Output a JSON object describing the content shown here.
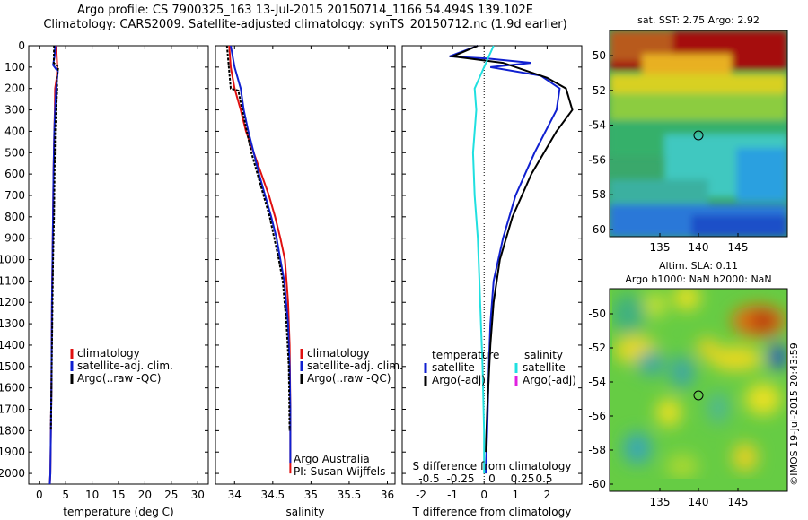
{
  "header": {
    "title_line1": "Argo profile: CS 7900325_163 13-Jul-2015 20150714_1166 54.494S 139.102E",
    "title_line2": "Climatology: CARS2009. Satellite-adjusted climatology: synTS_20150712.nc (1.9d earlier)"
  },
  "colors": {
    "climatology": "#e01010",
    "satellite_adj": "#1020d0",
    "argo": "#000000",
    "sal_satellite": "#20e0e0",
    "sal_argo_adj": "#e020e0"
  },
  "chart_data": [
    {
      "type": "line",
      "panel": "temperature",
      "xlabel": "temperature (deg C)",
      "ylabel": "",
      "xlim": [
        -2,
        32
      ],
      "ylim": [
        2050,
        0
      ],
      "xticks": [
        "0",
        "5",
        "10",
        "15",
        "20",
        "25",
        "30"
      ],
      "yticks": [
        "0",
        "100",
        "200",
        "300",
        "400",
        "500",
        "600",
        "700",
        "800",
        "900",
        "1000",
        "1100",
        "1200",
        "1300",
        "1400",
        "1500",
        "1600",
        "1700",
        "1800",
        "1900",
        "2000"
      ],
      "legend": [
        "climatology",
        "satellite-adj. clim.",
        "Argo(..raw -QC)"
      ],
      "series": [
        {
          "name": "climatology",
          "color": "#e01010",
          "x": [
            3.2,
            3.3,
            3.4,
            3.3,
            3.0,
            2.95,
            2.85,
            2.7,
            2.6,
            2.5,
            2.4,
            2.35,
            2.3,
            2.2,
            2.1,
            2.0
          ],
          "y": [
            0,
            50,
            100,
            150,
            200,
            300,
            400,
            600,
            800,
            1000,
            1200,
            1400,
            1600,
            1800,
            2000,
            2050
          ]
        },
        {
          "name": "satellite-adj. clim.",
          "color": "#1020d0",
          "x": [
            3.0,
            2.9,
            2.6,
            3.5,
            3.2,
            3.0,
            2.85,
            2.7,
            2.6,
            2.5,
            2.4,
            2.35,
            2.3,
            2.2,
            2.1,
            2.0
          ],
          "y": [
            0,
            50,
            90,
            120,
            200,
            300,
            400,
            600,
            800,
            1000,
            1200,
            1400,
            1600,
            1800,
            2000,
            2050
          ]
        },
        {
          "name": "Argo(..raw -QC)",
          "color": "#000000",
          "x": [
            2.8,
            2.75,
            3.6,
            3.3,
            3.4,
            3.2,
            3.0,
            2.9,
            2.8,
            2.6,
            2.5,
            2.4,
            2.3,
            2.2
          ],
          "y": [
            0,
            80,
            100,
            150,
            200,
            300,
            400,
            600,
            800,
            1000,
            1200,
            1400,
            1600,
            1800
          ]
        }
      ]
    },
    {
      "type": "line",
      "panel": "salinity",
      "xlabel": "salinity",
      "xlim": [
        33.75,
        36.1
      ],
      "ylim": [
        2050,
        0
      ],
      "xticks": [
        "34",
        "34.5",
        "35",
        "35.5",
        "36"
      ],
      "legend": [
        "climatology",
        "satellite-adj. clim.",
        "Argo(..raw -QC)"
      ],
      "annotations": [
        "Argo Australia",
        "PI: Susan Wijffels"
      ],
      "series": [
        {
          "name": "climatology",
          "color": "#e01010",
          "x": [
            33.93,
            33.95,
            34.0,
            34.08,
            34.15,
            34.25,
            34.35,
            34.45,
            34.53,
            34.6,
            34.66,
            34.7,
            34.72,
            34.73,
            34.73
          ],
          "y": [
            0,
            100,
            200,
            300,
            400,
            500,
            600,
            700,
            800,
            900,
            1000,
            1200,
            1400,
            1700,
            2000
          ]
        },
        {
          "name": "satellite-adj. clim.",
          "color": "#1020d0",
          "x": [
            33.95,
            34.0,
            34.08,
            34.12,
            34.18,
            34.25,
            34.32,
            34.4,
            34.48,
            34.55,
            34.6,
            34.65,
            34.7,
            34.72,
            34.73,
            34.73
          ],
          "y": [
            0,
            100,
            200,
            300,
            400,
            500,
            600,
            700,
            800,
            900,
            1000,
            1100,
            1300,
            1500,
            1700,
            1950
          ]
        },
        {
          "name": "Argo(..raw -QC)",
          "color": "#000000",
          "x": [
            33.9,
            33.95,
            34.05,
            34.1,
            34.16,
            34.22,
            34.3,
            34.38,
            34.46,
            34.52,
            34.58,
            34.63,
            34.68,
            34.71,
            34.72
          ],
          "y": [
            0,
            200,
            210,
            300,
            400,
            500,
            600,
            700,
            800,
            900,
            1000,
            1100,
            1300,
            1500,
            1800
          ]
        }
      ]
    },
    {
      "type": "line",
      "panel": "difference",
      "xlabel": "T difference from climatology",
      "xlabel_top": "S difference from climatology",
      "xlim": [
        -2.6,
        3.1
      ],
      "ylim": [
        2050,
        0
      ],
      "xticks": [
        "-2",
        "-1",
        "0",
        "1",
        "2"
      ],
      "xticks_salinity": [
        "-0.5",
        "-0.25",
        "0",
        "0.25",
        "0.5"
      ],
      "legend": [
        "temperature",
        "satellite",
        "Argo(-adj)",
        "salinity",
        "satellite",
        "Argo(-adj)"
      ],
      "series": [
        {
          "name": "temperature satellite",
          "color": "#1020d0",
          "x": [
            -0.2,
            -1.1,
            0.1,
            1.5,
            0.2,
            1.8,
            2.4,
            2.3,
            1.6,
            1.0,
            0.6,
            0.3,
            0.2,
            0.15,
            0.1,
            0.05
          ],
          "y": [
            0,
            50,
            60,
            80,
            100,
            140,
            200,
            300,
            500,
            700,
            900,
            1100,
            1300,
            1500,
            1800,
            2000
          ]
        },
        {
          "name": "temperature Argo(-adj)",
          "color": "#000000",
          "x": [
            -0.2,
            -1.0,
            0.6,
            2.0,
            2.6,
            2.8,
            2.3,
            1.5,
            0.9,
            0.5,
            0.3,
            0.2,
            0.1,
            0.05
          ],
          "y": [
            0,
            50,
            80,
            150,
            200,
            300,
            400,
            600,
            800,
            1000,
            1200,
            1400,
            1700,
            1900
          ]
        },
        {
          "name": "salinity satellite",
          "color": "#20e0e0",
          "x": [
            0.3,
            0.0,
            -0.3,
            -0.25,
            -0.35,
            -0.3,
            -0.2,
            -0.15,
            -0.1,
            -0.05,
            0.0,
            0.0
          ],
          "y": [
            0,
            100,
            200,
            300,
            500,
            700,
            900,
            1100,
            1300,
            1500,
            1800,
            2000
          ]
        }
      ]
    },
    {
      "type": "heatmap",
      "panel": "sst-map",
      "title": "sat. SST: 2.75 Argo: 2.92",
      "xticks": [
        "135",
        "140",
        "145"
      ],
      "yticks": [
        "-50",
        "-52",
        "-54",
        "-56",
        "-58",
        "-60"
      ],
      "marker": {
        "lon": 139.1,
        "lat": -54.5
      }
    },
    {
      "type": "heatmap",
      "panel": "sla-map",
      "title": "Altim. SLA: 0.11",
      "subtitle": "Argo h1000: NaN h2000: NaN",
      "xticks": [
        "135",
        "140",
        "145"
      ],
      "yticks": [
        "-50",
        "-52",
        "-54",
        "-56",
        "-58",
        "-60"
      ],
      "marker": {
        "lon": 139.1,
        "lat": -54.5
      }
    }
  ],
  "watermark": "©IMOS 19-Jul-2015 20:43:59"
}
